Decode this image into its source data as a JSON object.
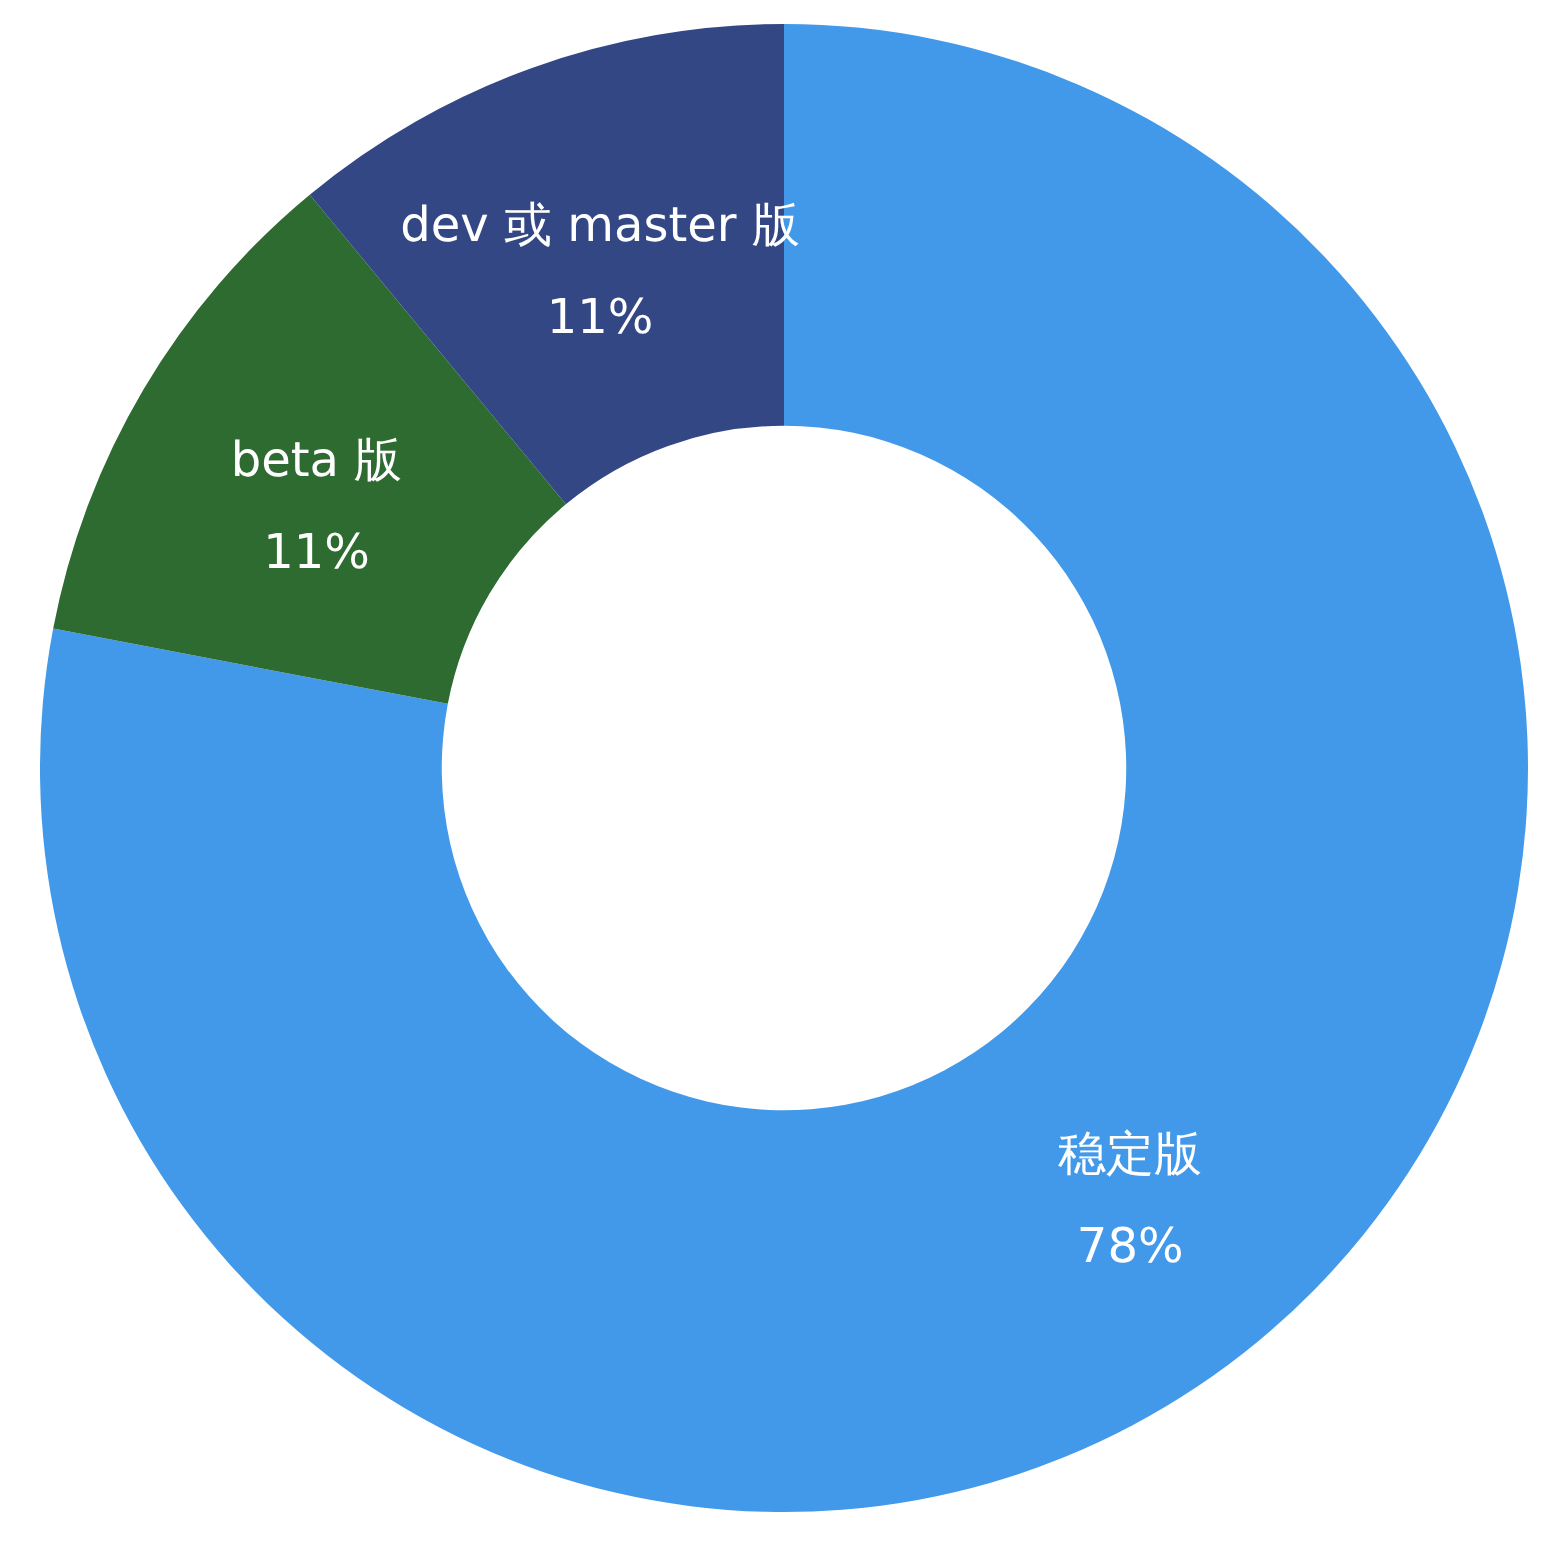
{
  "chart_data": {
    "type": "donut",
    "categories": [
      "稳定版",
      "beta 版",
      "dev 或 master 版"
    ],
    "values": [
      78,
      11,
      11
    ],
    "value_labels": [
      "78%",
      "11%",
      "11%"
    ],
    "colors": [
      "#4299ea",
      "#2e6b30",
      "#344785"
    ]
  }
}
